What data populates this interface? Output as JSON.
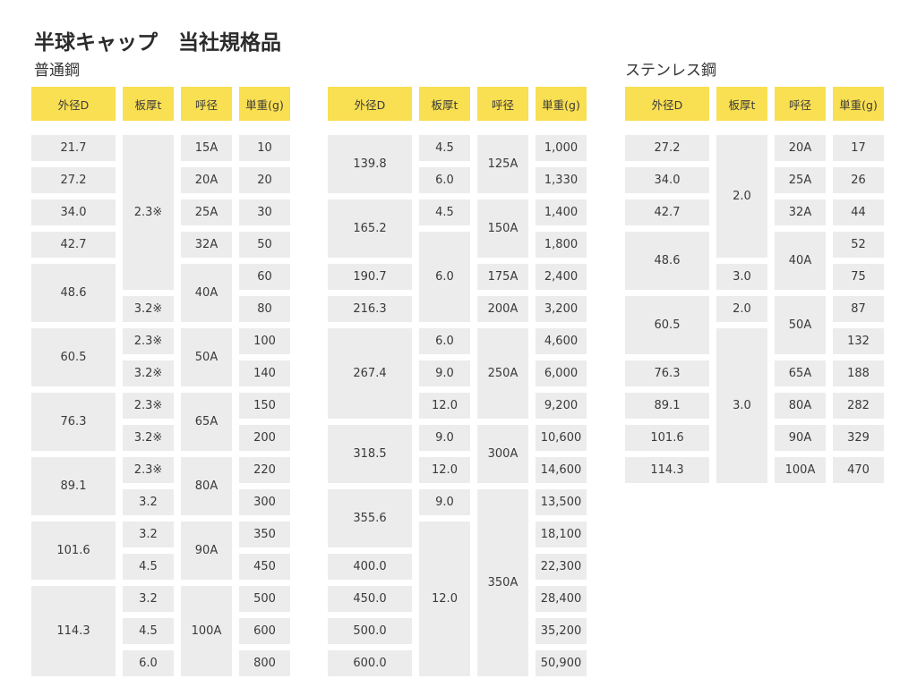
{
  "title": "半球キャップ　当社規格品",
  "sections": {
    "steel": "普通鋼",
    "stainless": "ステンレス鋼"
  },
  "headers": [
    "外径D",
    "板厚t",
    "呼径",
    "単重(g)"
  ],
  "tables": [
    {
      "rows": [
        {
          "od": "21.7",
          "od_rs": 1,
          "t": "2.3※",
          "t_rs": 5,
          "nd": "15A",
          "nd_rs": 1,
          "w": "10"
        },
        {
          "od": "27.2",
          "od_rs": 1,
          "nd": "20A",
          "nd_rs": 1,
          "w": "20"
        },
        {
          "od": "34.0",
          "od_rs": 1,
          "nd": "25A",
          "nd_rs": 1,
          "w": "30"
        },
        {
          "od": "42.7",
          "od_rs": 1,
          "nd": "32A",
          "nd_rs": 1,
          "w": "50"
        },
        {
          "od": "48.6",
          "od_rs": 2,
          "nd": "40A",
          "nd_rs": 2,
          "w": "60"
        },
        {
          "t": "3.2※",
          "t_rs": 1,
          "w": "80"
        },
        {
          "od": "60.5",
          "od_rs": 2,
          "t": "2.3※",
          "t_rs": 1,
          "nd": "50A",
          "nd_rs": 2,
          "w": "100"
        },
        {
          "t": "3.2※",
          "t_rs": 1,
          "w": "140"
        },
        {
          "od": "76.3",
          "od_rs": 2,
          "t": "2.3※",
          "t_rs": 1,
          "nd": "65A",
          "nd_rs": 2,
          "w": "150"
        },
        {
          "t": "3.2※",
          "t_rs": 1,
          "w": "200"
        },
        {
          "od": "89.1",
          "od_rs": 2,
          "t": "2.3※",
          "t_rs": 1,
          "nd": "80A",
          "nd_rs": 2,
          "w": "220"
        },
        {
          "t": "3.2",
          "t_rs": 1,
          "w": "300"
        },
        {
          "od": "101.6",
          "od_rs": 2,
          "t": "3.2",
          "t_rs": 1,
          "nd": "90A",
          "nd_rs": 2,
          "w": "350"
        },
        {
          "t": "4.5",
          "t_rs": 1,
          "w": "450"
        },
        {
          "od": "114.3",
          "od_rs": 3,
          "t": "3.2",
          "t_rs": 1,
          "nd": "100A",
          "nd_rs": 3,
          "w": "500"
        },
        {
          "t": "4.5",
          "t_rs": 1,
          "w": "600"
        },
        {
          "t": "6.0",
          "t_rs": 1,
          "w": "800"
        }
      ]
    },
    {
      "rows": [
        {
          "od": "139.8",
          "od_rs": 2,
          "t": "4.5",
          "t_rs": 1,
          "nd": "125A",
          "nd_rs": 2,
          "w": "1,000"
        },
        {
          "t": "6.0",
          "t_rs": 1,
          "w": "1,330"
        },
        {
          "od": "165.2",
          "od_rs": 2,
          "t": "4.5",
          "t_rs": 1,
          "nd": "150A",
          "nd_rs": 2,
          "w": "1,400"
        },
        {
          "t": "6.0",
          "t_rs": 3,
          "w": "1,800"
        },
        {
          "od": "190.7",
          "od_rs": 1,
          "nd": "175A",
          "nd_rs": 1,
          "w": "2,400"
        },
        {
          "od": "216.3",
          "od_rs": 1,
          "nd": "200A",
          "nd_rs": 1,
          "w": "3,200"
        },
        {
          "od": "267.4",
          "od_rs": 3,
          "t": "6.0",
          "t_rs": 1,
          "nd": "250A",
          "nd_rs": 3,
          "w": "4,600"
        },
        {
          "t": "9.0",
          "t_rs": 1,
          "w": "6,000"
        },
        {
          "t": "12.0",
          "t_rs": 1,
          "w": "9,200"
        },
        {
          "od": "318.5",
          "od_rs": 2,
          "t": "9.0",
          "t_rs": 1,
          "nd": "300A",
          "nd_rs": 2,
          "w": "10,600"
        },
        {
          "t": "12.0",
          "t_rs": 1,
          "w": "14,600"
        },
        {
          "od": "355.6",
          "od_rs": 2,
          "t": "9.0",
          "t_rs": 1,
          "nd": "350A",
          "nd_rs": 6,
          "w": "13,500"
        },
        {
          "t": "12.0",
          "t_rs": 5,
          "w": "18,100"
        },
        {
          "od": "400.0",
          "od_rs": 1,
          "w": "22,300"
        },
        {
          "od": "450.0",
          "od_rs": 1,
          "w": "28,400"
        },
        {
          "od": "500.0",
          "od_rs": 1,
          "w": "35,200"
        },
        {
          "od": "600.0",
          "od_rs": 1,
          "w": "50,900"
        }
      ]
    },
    {
      "rows": [
        {
          "od": "27.2",
          "od_rs": 1,
          "t": "2.0",
          "t_rs": 4,
          "nd": "20A",
          "nd_rs": 1,
          "w": "17"
        },
        {
          "od": "34.0",
          "od_rs": 1,
          "nd": "25A",
          "nd_rs": 1,
          "w": "26"
        },
        {
          "od": "42.7",
          "od_rs": 1,
          "nd": "32A",
          "nd_rs": 1,
          "w": "44"
        },
        {
          "od": "48.6",
          "od_rs": 2,
          "nd": "40A",
          "nd_rs": 2,
          "w": "52"
        },
        {
          "t": "3.0",
          "t_rs": 1,
          "w": "75"
        },
        {
          "od": "60.5",
          "od_rs": 2,
          "t": "2.0",
          "t_rs": 1,
          "nd": "50A",
          "nd_rs": 2,
          "w": "87"
        },
        {
          "t": "3.0",
          "t_rs": 5,
          "w": "132"
        },
        {
          "od": "76.3",
          "od_rs": 1,
          "nd": "65A",
          "nd_rs": 1,
          "w": "188"
        },
        {
          "od": "89.1",
          "od_rs": 1,
          "nd": "80A",
          "nd_rs": 1,
          "w": "282"
        },
        {
          "od": "101.6",
          "od_rs": 1,
          "nd": "90A",
          "nd_rs": 1,
          "w": "329"
        },
        {
          "od": "114.3",
          "od_rs": 1,
          "nd": "100A",
          "nd_rs": 1,
          "w": "470"
        }
      ]
    }
  ]
}
